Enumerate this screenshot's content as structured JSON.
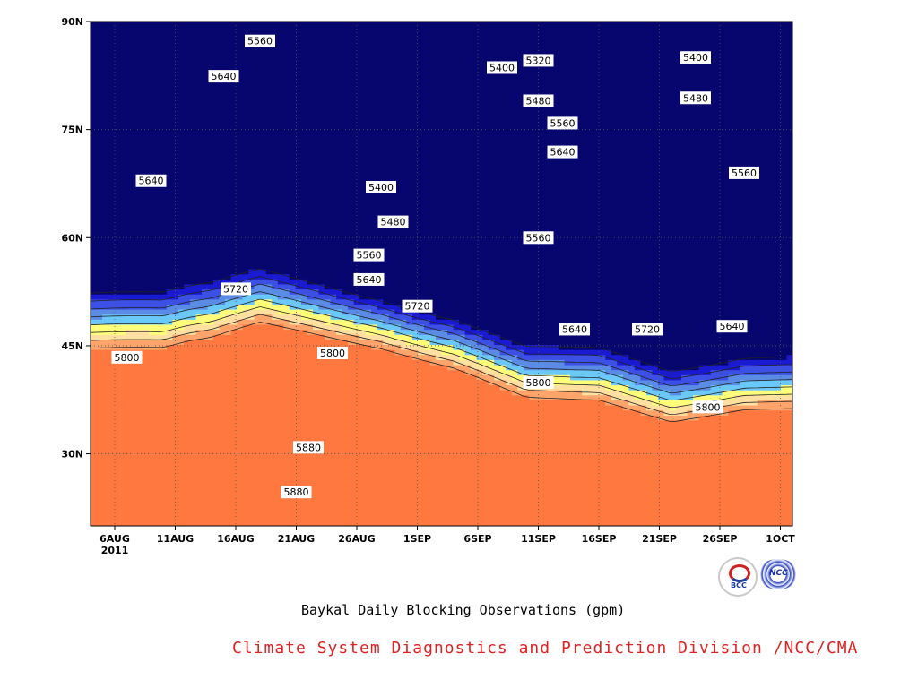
{
  "chart_data": {
    "type": "heatmap",
    "title": "Baykal Daily Blocking Observations (gpm)",
    "credit": "Climate System Diagnostics and Prediction Division /NCC/CMA",
    "credit_color": "#dd2222",
    "year_label": "2011",
    "x_axis": {
      "ticks": [
        "6AUG",
        "11AUG",
        "16AUG",
        "21AUG",
        "26AUG",
        "1SEP",
        "6SEP",
        "11SEP",
        "16SEP",
        "21SEP",
        "26SEP",
        "1OCT"
      ],
      "start": "2011-08-04",
      "end": "2011-10-01"
    },
    "y_axis": {
      "ticks": [
        "30N",
        "45N",
        "60N",
        "75N",
        "90N"
      ],
      "tick_values": [
        30,
        45,
        60,
        75,
        90
      ],
      "ylim": [
        20,
        90
      ]
    },
    "grid": true,
    "contour_levels": [
      5320,
      5400,
      5480,
      5560,
      5640,
      5720,
      5800,
      5880
    ],
    "level_colors": [
      "#06066e",
      "#1a1ad0",
      "#3c50e6",
      "#5a8ce6",
      "#6ac8fa",
      "#ffff7a",
      "#ffe0a0",
      "#ffa46a",
      "#ff7840",
      "#f56e78",
      "#e83040"
    ],
    "contour_labels": [
      {
        "value": "5560",
        "x": "2011-08-18",
        "y": 87.3
      },
      {
        "value": "5640",
        "x": "2011-08-15",
        "y": 82.4
      },
      {
        "value": "5640",
        "x": "2011-08-09",
        "y": 67.9
      },
      {
        "value": "5720",
        "x": "2011-08-16",
        "y": 52.9
      },
      {
        "value": "5800",
        "x": "2011-08-07",
        "y": 43.4
      },
      {
        "value": "5800",
        "x": "2011-08-24",
        "y": 44.0
      },
      {
        "value": "5400",
        "x": "2011-08-28",
        "y": 67.0
      },
      {
        "value": "5480",
        "x": "2011-08-29",
        "y": 62.2
      },
      {
        "value": "5560",
        "x": "2011-08-27",
        "y": 57.6
      },
      {
        "value": "5640",
        "x": "2011-08-27",
        "y": 54.2
      },
      {
        "value": "5720",
        "x": "2011-08-31",
        "y": 50.5
      },
      {
        "value": "5320",
        "x": "2011-09-10",
        "y": 84.6
      },
      {
        "value": "5400",
        "x": "2011-09-07",
        "y": 83.6
      },
      {
        "value": "5480",
        "x": "2011-09-10",
        "y": 79.0
      },
      {
        "value": "5560",
        "x": "2011-09-12",
        "y": 75.9
      },
      {
        "value": "5640",
        "x": "2011-09-12",
        "y": 71.9
      },
      {
        "value": "5560",
        "x": "2011-09-10",
        "y": 60.0
      },
      {
        "value": "5640",
        "x": "2011-09-13",
        "y": 47.3
      },
      {
        "value": "5800",
        "x": "2011-09-10",
        "y": 39.9
      },
      {
        "value": "5720",
        "x": "2011-09-19",
        "y": 47.3
      },
      {
        "value": "5400",
        "x": "2011-09-23",
        "y": 85.0
      },
      {
        "value": "5480",
        "x": "2011-09-23",
        "y": 79.4
      },
      {
        "value": "5560",
        "x": "2011-09-27",
        "y": 69.0
      },
      {
        "value": "5640",
        "x": "2011-09-26",
        "y": 47.7
      },
      {
        "value": "5800",
        "x": "2011-09-24",
        "y": 36.5
      },
      {
        "value": "5880",
        "x": "2011-08-22",
        "y": 30.9
      },
      {
        "value": "5880",
        "x": "2011-08-21",
        "y": 24.7
      }
    ]
  }
}
